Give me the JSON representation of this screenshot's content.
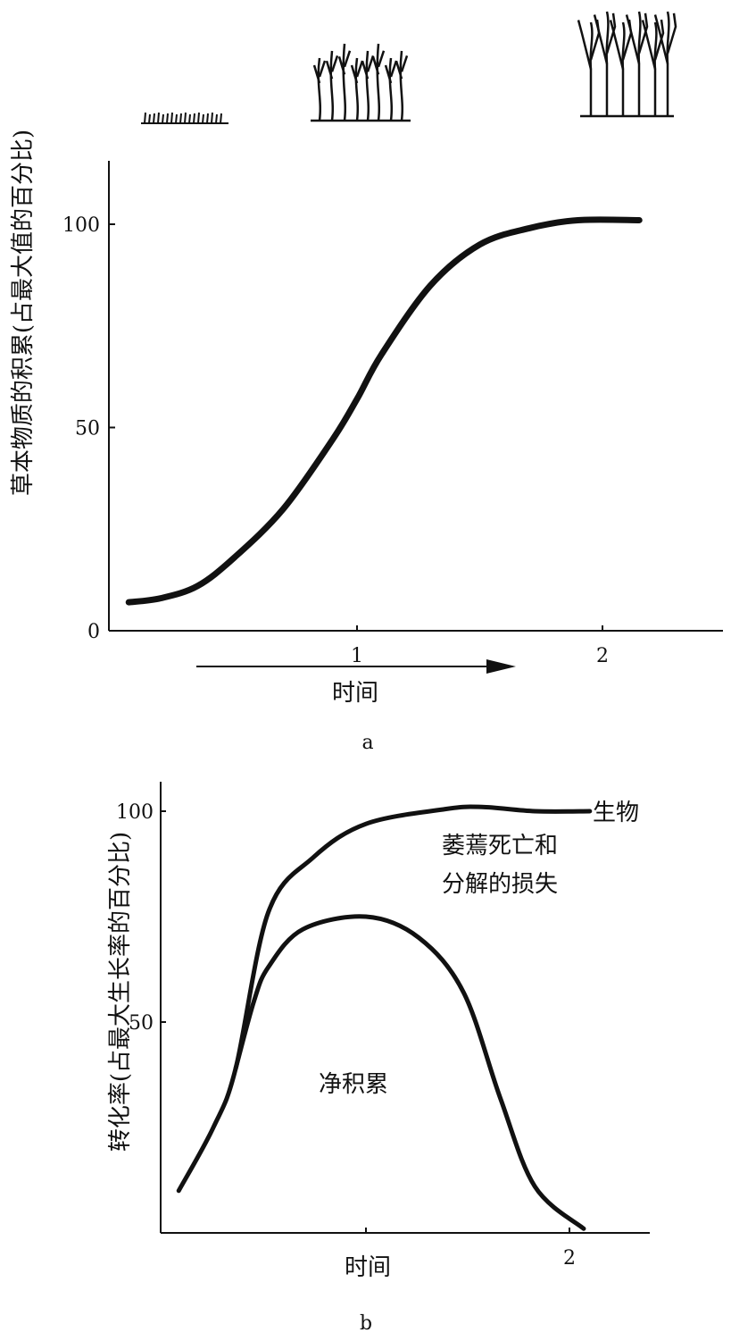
{
  "chart_data": [
    {
      "id": "a",
      "type": "line",
      "caption": "a",
      "title": "",
      "xlabel": "时间",
      "ylabel": "草本物质的积累(占最大值的百分比)",
      "xlim": [
        0,
        2.5
      ],
      "ylim": [
        0,
        115
      ],
      "x_ticks": [
        {
          "value": 1,
          "label": "1"
        },
        {
          "value": 2,
          "label": "2"
        }
      ],
      "y_ticks": [
        {
          "value": 0,
          "label": "0"
        },
        {
          "value": 50,
          "label": "50"
        },
        {
          "value": 100,
          "label": "100"
        }
      ],
      "grid": false,
      "series": [
        {
          "name": "accumulation",
          "x": [
            0.07,
            0.2,
            0.35,
            0.5,
            0.7,
            0.9,
            1.0,
            1.1,
            1.3,
            1.5,
            1.7,
            1.9,
            2.15
          ],
          "y": [
            7,
            8,
            11,
            18,
            30,
            47,
            57,
            68,
            85,
            95,
            99,
            101,
            101
          ]
        }
      ],
      "illustrations": [
        "grass",
        "shrubs",
        "trees"
      ]
    },
    {
      "id": "b",
      "type": "line",
      "caption": "b",
      "title": "",
      "xlabel": "时间",
      "ylabel": "转化率(占最大生长率的百分比)",
      "xlim": [
        0,
        2.4
      ],
      "ylim": [
        0,
        110
      ],
      "x_ticks": [
        {
          "value": 1,
          "label": ""
        },
        {
          "value": 2,
          "label": "2"
        }
      ],
      "y_ticks": [
        {
          "value": 50,
          "label": "50"
        },
        {
          "value": 100,
          "label": "100"
        }
      ],
      "grid": false,
      "series": [
        {
          "name": "生物",
          "x": [
            0.08,
            0.25,
            0.36,
            0.52,
            0.74,
            1.0,
            1.39,
            1.57,
            1.83,
            2.1
          ],
          "y": [
            10,
            25,
            39,
            76,
            89,
            97,
            100.5,
            101,
            100,
            100
          ]
        },
        {
          "name": "净积累",
          "x": [
            0.36,
            0.45,
            0.52,
            0.69,
            1.0,
            1.26,
            1.48,
            1.66,
            1.83,
            2.07
          ],
          "y": [
            39,
            55,
            63,
            72,
            75,
            70,
            57,
            32,
            11,
            1
          ]
        }
      ],
      "annotations": {
        "series_label": "生物",
        "loss_line1": "萎蔫死亡和",
        "loss_line2": "分解的损失",
        "net_label": "净积累"
      }
    }
  ]
}
